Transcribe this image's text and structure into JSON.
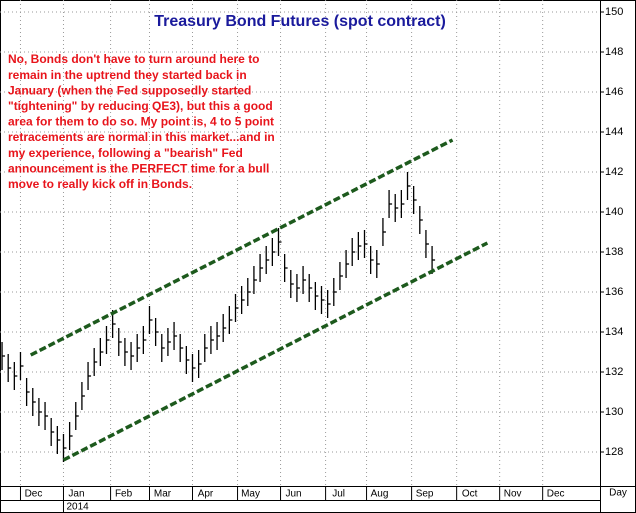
{
  "chart_data": {
    "type": "hlc",
    "title": "Treasury Bond Futures (spot contract)",
    "annotation": [
      "No, Bonds don't have to turn around here to",
      "remain in the uptrend they started back in",
      "January (when the Fed supposedly started",
      "\"tightening\" by reducing QE3), but this a good",
      "area for them to do so. My point is, 4 to 5 point",
      "retracements are normal in this market...and in",
      "my experience, following a \"bearish\" Fed",
      "announcement is the PERFECT time for a bull",
      "move to really kick off in Bonds."
    ],
    "x_label": "Day",
    "year_label": "2014",
    "xlim": [
      0,
      293
    ],
    "xticks": [
      {
        "value": 10,
        "label": "Dec"
      },
      {
        "value": 31,
        "label": "Jan"
      },
      {
        "value": 54,
        "label": "Feb"
      },
      {
        "value": 73,
        "label": "Mar"
      },
      {
        "value": 94,
        "label": "Apr"
      },
      {
        "value": 116,
        "label": "May"
      },
      {
        "value": 137,
        "label": "Jun"
      },
      {
        "value": 159,
        "label": "Jul"
      },
      {
        "value": 179,
        "label": "Aug"
      },
      {
        "value": 201,
        "label": "Sep"
      },
      {
        "value": 223,
        "label": "Oct"
      },
      {
        "value": 244,
        "label": "Nov"
      },
      {
        "value": 265,
        "label": "Dec"
      }
    ],
    "ylim": [
      126.3,
      150.6
    ],
    "yticks": [
      128,
      130,
      132,
      134,
      136,
      138,
      140,
      142,
      144,
      146,
      148,
      150
    ],
    "grid": true,
    "color": "#000000",
    "x": [
      1,
      4,
      7,
      10,
      13,
      16,
      19,
      22,
      25,
      28,
      31,
      34,
      37,
      40,
      43,
      46,
      49,
      52,
      55,
      58,
      61,
      64,
      67,
      70,
      73,
      76,
      79,
      82,
      85,
      88,
      91,
      94,
      97,
      100,
      103,
      106,
      109,
      112,
      115,
      118,
      121,
      124,
      127,
      130,
      133,
      136,
      139,
      142,
      145,
      148,
      151,
      154,
      157,
      160,
      163,
      166,
      169,
      172,
      175,
      178,
      181,
      184,
      187,
      190,
      193,
      196,
      199,
      202,
      205,
      208,
      211
    ],
    "high": [
      133.5,
      132.9,
      132.5,
      133,
      131.7,
      131.2,
      130.7,
      130.5,
      129.7,
      129.3,
      128.9,
      129.5,
      130.5,
      131.5,
      132.5,
      133.2,
      133.7,
      134.3,
      135.1,
      134.2,
      133.7,
      133.5,
      133.9,
      134.3,
      135.3,
      134.7,
      133.9,
      134.2,
      134.5,
      133.9,
      133.3,
      132.9,
      133.1,
      133.9,
      134.3,
      134.5,
      134.9,
      135.3,
      135.9,
      136.3,
      136.7,
      137.3,
      137.9,
      138.3,
      138.7,
      139.2,
      137.9,
      137.1,
      136.9,
      137.3,
      136.9,
      136.5,
      136.3,
      136.1,
      136.7,
      137.5,
      138.1,
      138.7,
      139,
      139.1,
      138.3,
      138.1,
      139.7,
      141.1,
      140.9,
      141.1,
      142,
      141.3,
      140.3,
      139.1,
      138.3
    ],
    "low": [
      132.1,
      131.5,
      131.1,
      131.6,
      130.3,
      129.8,
      129.3,
      129.1,
      128.3,
      127.9,
      127.5,
      128.1,
      129.1,
      130.1,
      131.1,
      131.8,
      132.3,
      132.9,
      133.7,
      132.8,
      132.3,
      132.1,
      132.5,
      132.9,
      133.9,
      133.3,
      132.5,
      132.8,
      133.1,
      132.5,
      131.9,
      131.5,
      131.7,
      132.5,
      132.9,
      133.1,
      133.5,
      133.9,
      134.5,
      134.9,
      135.3,
      135.9,
      136.5,
      136.9,
      137.3,
      137.8,
      136.5,
      135.7,
      135.5,
      135.9,
      135.5,
      135.1,
      134.9,
      134.7,
      135.3,
      136.1,
      136.7,
      137.3,
      137.6,
      137.7,
      136.9,
      136.7,
      138.3,
      139.7,
      139.5,
      139.7,
      140.6,
      139.9,
      138.9,
      137.7,
      136.9
    ],
    "close": [
      132.8,
      132.2,
      131.8,
      132.3,
      131,
      130.5,
      130,
      129.8,
      129,
      128.6,
      128.2,
      128.8,
      129.8,
      130.8,
      131.8,
      132.5,
      133,
      133.6,
      134.4,
      133.5,
      133,
      132.8,
      133.2,
      133.6,
      134.6,
      134,
      133.2,
      133.5,
      133.8,
      133.2,
      132.6,
      132.2,
      132.4,
      133.2,
      133.6,
      133.8,
      134.2,
      134.6,
      135.2,
      135.6,
      136,
      136.6,
      137.2,
      137.6,
      138,
      138.5,
      137.2,
      136.4,
      136.2,
      136.6,
      136.2,
      135.8,
      135.6,
      135.4,
      136,
      136.8,
      137.4,
      138,
      138.3,
      138.4,
      137.6,
      137.4,
      139,
      140.4,
      140.2,
      140.4,
      141.3,
      140.6,
      139.6,
      138.4,
      137.6
    ],
    "channel_lines": [
      {
        "color": "#1d5a1d",
        "x": [
          15,
          221
        ],
        "y": [
          132.85,
          143.6
        ]
      },
      {
        "color": "#1d5a1d",
        "x": [
          31,
          238
        ],
        "y": [
          127.6,
          138.45
        ]
      }
    ]
  }
}
